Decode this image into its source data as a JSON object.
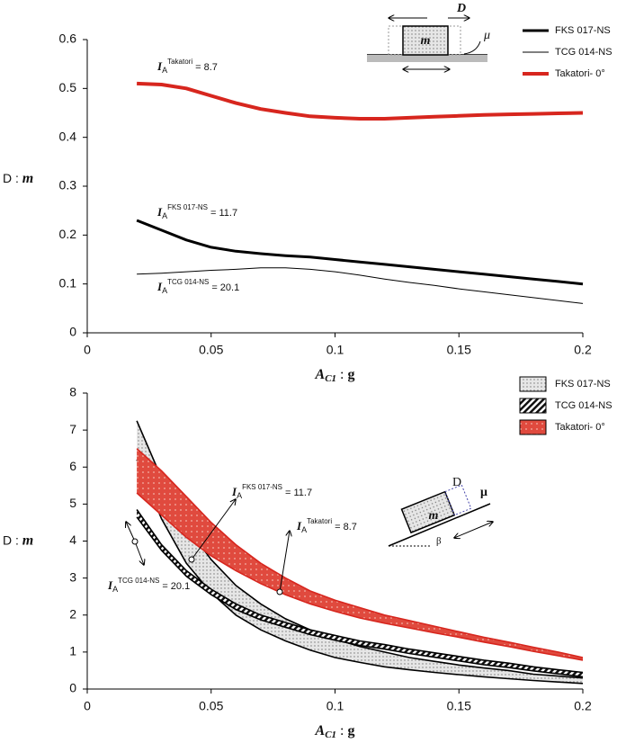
{
  "chart_data": [
    {
      "type": "line",
      "x": [
        0.02,
        0.03,
        0.04,
        0.05,
        0.06,
        0.07,
        0.08,
        0.09,
        0.1,
        0.11,
        0.12,
        0.13,
        0.14,
        0.15,
        0.16,
        0.17,
        0.18,
        0.19,
        0.2
      ],
      "series": [
        {
          "name": "FKS 017-NS",
          "color": "#000000",
          "width": 3,
          "values": [
            0.23,
            0.21,
            0.19,
            0.175,
            0.167,
            0.162,
            0.158,
            0.155,
            0.15,
            0.145,
            0.14,
            0.135,
            0.13,
            0.125,
            0.12,
            0.115,
            0.11,
            0.105,
            0.1
          ]
        },
        {
          "name": "TCG 014-NS",
          "color": "#000000",
          "width": 1,
          "values": [
            0.12,
            0.122,
            0.125,
            0.128,
            0.13,
            0.133,
            0.133,
            0.13,
            0.125,
            0.118,
            0.11,
            0.103,
            0.097,
            0.09,
            0.084,
            0.078,
            0.072,
            0.066,
            0.06
          ]
        },
        {
          "name": "Takatori- 0°",
          "color": "#d7261e",
          "width": 4,
          "values": [
            0.51,
            0.508,
            0.5,
            0.485,
            0.47,
            0.458,
            0.45,
            0.443,
            0.44,
            0.438,
            0.438,
            0.44,
            0.442,
            0.444,
            0.446,
            0.447,
            0.448,
            0.449,
            0.45
          ]
        }
      ],
      "xlim": [
        0,
        0.2
      ],
      "xticks": [
        0,
        0.05,
        0.1,
        0.15,
        0.2
      ],
      "ylim": [
        0,
        0.6
      ],
      "yticks": [
        0,
        0.1,
        0.2,
        0.3,
        0.4,
        0.5,
        0.6
      ],
      "xlabel": [
        "A",
        "C1",
        " : ",
        "g"
      ],
      "ylabel": [
        "D : ",
        "m"
      ],
      "legend": "upper right",
      "annotations": [
        {
          "symbol": "I",
          "sub": "A",
          "sup": "Takatori",
          "text": "= 8.7"
        },
        {
          "symbol": "I",
          "sub": "A",
          "sup": "FKS 017-NS",
          "text": "= 11.7"
        },
        {
          "symbol": "I",
          "sub": "A",
          "sup": "TCG 014-NS",
          "text": "= 20.1"
        }
      ],
      "inset": {
        "mass": "m",
        "displacement": "D",
        "friction": "μ"
      }
    },
    {
      "type": "band",
      "x": [
        0.02,
        0.03,
        0.04,
        0.05,
        0.06,
        0.07,
        0.08,
        0.09,
        0.1,
        0.11,
        0.12,
        0.13,
        0.14,
        0.15,
        0.16,
        0.17,
        0.18,
        0.19,
        0.2
      ],
      "series": [
        {
          "name": "FKS 017-NS",
          "color": "#000000",
          "hatch": "dots",
          "upper": [
            7.25,
            5.7,
            4.4,
            3.5,
            2.8,
            2.3,
            1.9,
            1.6,
            1.35,
            1.15,
            1.0,
            0.85,
            0.75,
            0.65,
            0.57,
            0.5,
            0.4,
            0.35,
            0.3
          ],
          "lower": [
            6.2,
            4.6,
            3.4,
            2.6,
            2.0,
            1.6,
            1.3,
            1.05,
            0.85,
            0.72,
            0.6,
            0.52,
            0.45,
            0.39,
            0.33,
            0.28,
            0.23,
            0.19,
            0.15
          ]
        },
        {
          "name": "TCG 014-NS",
          "color": "#000000",
          "hatch": "stripes",
          "upper": [
            4.85,
            3.9,
            3.2,
            2.7,
            2.3,
            2.0,
            1.8,
            1.6,
            1.45,
            1.3,
            1.2,
            1.08,
            0.98,
            0.88,
            0.78,
            0.7,
            0.6,
            0.52,
            0.45
          ],
          "lower": [
            4.65,
            3.75,
            3.05,
            2.55,
            2.15,
            1.87,
            1.67,
            1.47,
            1.32,
            1.18,
            1.08,
            0.96,
            0.86,
            0.76,
            0.66,
            0.58,
            0.49,
            0.41,
            0.33
          ]
        },
        {
          "name": "Takatori- 0°",
          "color": "#d7261e",
          "hatch": "red",
          "upper": [
            6.5,
            5.9,
            5.2,
            4.5,
            3.9,
            3.4,
            3.0,
            2.65,
            2.4,
            2.2,
            2.0,
            1.85,
            1.7,
            1.55,
            1.4,
            1.27,
            1.13,
            1.0,
            0.85
          ],
          "lower": [
            5.3,
            4.7,
            4.1,
            3.6,
            3.2,
            2.85,
            2.55,
            2.3,
            2.1,
            1.92,
            1.78,
            1.65,
            1.52,
            1.4,
            1.27,
            1.15,
            1.02,
            0.9,
            0.78
          ]
        }
      ],
      "xlim": [
        0,
        0.2
      ],
      "xticks": [
        0,
        0.05,
        0.1,
        0.15,
        0.2
      ],
      "ylim": [
        0,
        8
      ],
      "yticks": [
        0,
        1,
        2,
        3,
        4,
        5,
        6,
        7,
        8
      ],
      "xlabel": [
        "A",
        "C1",
        " : ",
        "g"
      ],
      "ylabel": [
        "D : ",
        "m"
      ],
      "legend": "upper right",
      "annotations": [
        {
          "symbol": "I",
          "sub": "A",
          "sup": "FKS 017-NS",
          "text": "= 11.7"
        },
        {
          "symbol": "I",
          "sub": "A",
          "sup": "Takatori",
          "text": "= 8.7"
        },
        {
          "symbol": "I",
          "sub": "A",
          "sup": "TCG 014-NS",
          "text": "= 20.1"
        }
      ],
      "inset": {
        "mass": "m",
        "displacement": "D",
        "friction": "μ",
        "angle": "β"
      }
    }
  ]
}
